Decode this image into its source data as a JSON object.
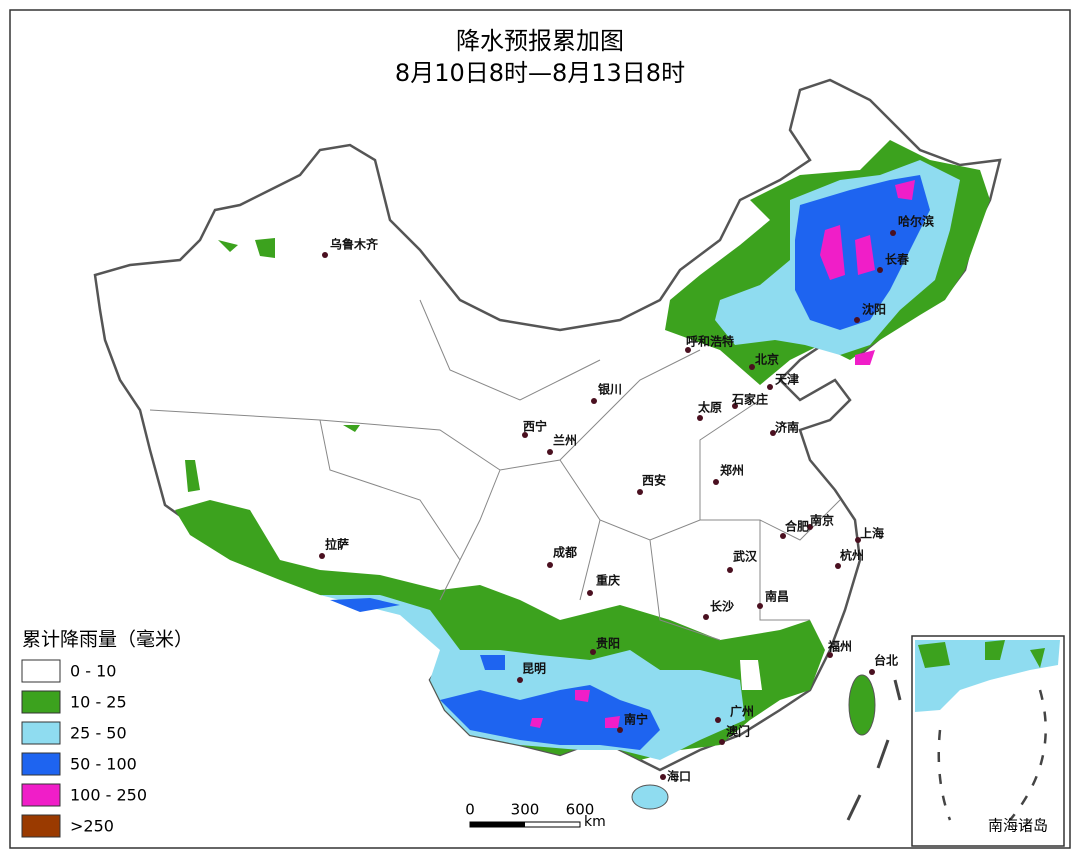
{
  "header": {
    "title": "降水预报累加图",
    "subtitle": "8月10日8时—8月13日8时"
  },
  "legend": {
    "title": "累计降雨量（毫米）",
    "items": [
      {
        "label": "0 - 10",
        "color": "#ffffff"
      },
      {
        "label": "10 - 25",
        "color": "#3ca21e"
      },
      {
        "label": "25 - 50",
        "color": "#8fdcf0"
      },
      {
        "label": "50 - 100",
        "color": "#1e64f0"
      },
      {
        "label": "100 - 250",
        "color": "#f01ec8"
      },
      {
        "label": ">250",
        "color": "#9a3a00"
      }
    ]
  },
  "cities": [
    "乌鲁木齐",
    "哈尔滨",
    "长春",
    "沈阳",
    "呼和浩特",
    "北京",
    "天津",
    "银川",
    "太原",
    "石家庄",
    "西宁",
    "兰州",
    "济南",
    "郑州",
    "西安",
    "南京",
    "合肥",
    "上海",
    "杭州",
    "拉萨",
    "成都",
    "武汉",
    "重庆",
    "南昌",
    "长沙",
    "福州",
    "贵阳",
    "昆明",
    "台北",
    "南宁",
    "广州",
    "澳门",
    "海口"
  ],
  "scale_bar": {
    "ticks": [
      0,
      300,
      600
    ],
    "unit": "km"
  },
  "inset": {
    "label": "南海诸岛"
  }
}
